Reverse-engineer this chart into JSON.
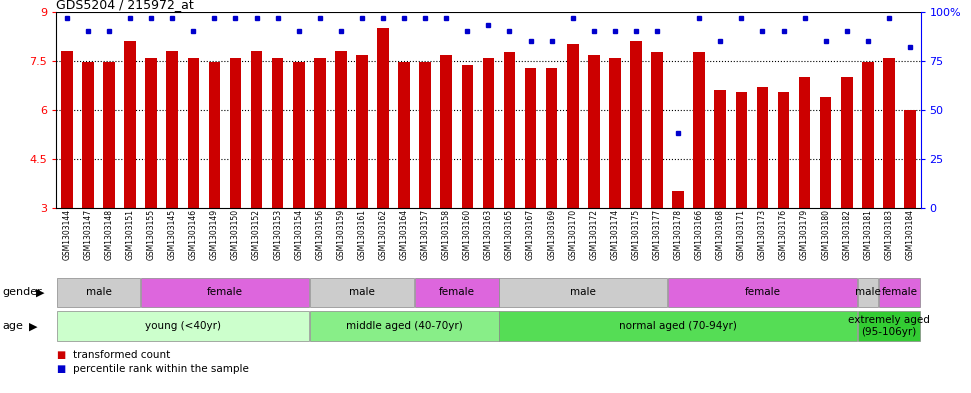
{
  "title": "GDS5204 / 215972_at",
  "samples": [
    "GSM1303144",
    "GSM1303147",
    "GSM1303148",
    "GSM1303151",
    "GSM1303155",
    "GSM1303145",
    "GSM1303146",
    "GSM1303149",
    "GSM1303150",
    "GSM1303152",
    "GSM1303153",
    "GSM1303154",
    "GSM1303156",
    "GSM1303159",
    "GSM1303161",
    "GSM1303162",
    "GSM1303164",
    "GSM1303157",
    "GSM1303158",
    "GSM1303160",
    "GSM1303163",
    "GSM1303165",
    "GSM1303167",
    "GSM1303169",
    "GSM1303170",
    "GSM1303172",
    "GSM1303174",
    "GSM1303175",
    "GSM1303177",
    "GSM1303178",
    "GSM1303166",
    "GSM1303168",
    "GSM1303171",
    "GSM1303173",
    "GSM1303176",
    "GSM1303179",
    "GSM1303180",
    "GSM1303182",
    "GSM1303181",
    "GSM1303183",
    "GSM1303184"
  ],
  "bar_values": [
    7.8,
    7.47,
    7.47,
    8.1,
    7.57,
    7.8,
    7.57,
    7.47,
    7.57,
    7.8,
    7.57,
    7.47,
    7.57,
    7.8,
    7.67,
    8.5,
    7.47,
    7.47,
    7.67,
    7.37,
    7.57,
    7.77,
    7.27,
    7.27,
    8.0,
    7.67,
    7.57,
    8.1,
    7.77,
    3.5,
    7.77,
    6.6,
    6.55,
    6.7,
    6.55,
    7.0,
    6.4,
    7.0,
    7.47,
    7.57,
    6.0
  ],
  "percentile_values": [
    97,
    90,
    90,
    97,
    97,
    97,
    90,
    97,
    97,
    97,
    97,
    90,
    97,
    90,
    97,
    97,
    97,
    97,
    97,
    90,
    93,
    90,
    85,
    85,
    97,
    90,
    90,
    90,
    90,
    38,
    97,
    85,
    97,
    90,
    90,
    97,
    85,
    90,
    85,
    97,
    82
  ],
  "ylim": [
    3,
    9
  ],
  "yticks": [
    3,
    4.5,
    6,
    7.5,
    9
  ],
  "ytick_labels": [
    "3",
    "4.5",
    "6",
    "7.5",
    "9"
  ],
  "y2lim": [
    0,
    100
  ],
  "y2ticks": [
    0,
    25,
    50,
    75,
    100
  ],
  "y2tick_labels": [
    "0",
    "25",
    "50",
    "75",
    "100%"
  ],
  "bar_color": "#CC0000",
  "dot_color": "#0000CC",
  "age_groups": [
    {
      "label": "young (<40yr)",
      "start": 0,
      "end": 12,
      "color": "#ccffcc"
    },
    {
      "label": "middle aged (40-70yr)",
      "start": 12,
      "end": 21,
      "color": "#88ee88"
    },
    {
      "label": "normal aged (70-94yr)",
      "start": 21,
      "end": 38,
      "color": "#55dd55"
    },
    {
      "label": "extremely aged\n(95-106yr)",
      "start": 38,
      "end": 41,
      "color": "#33cc33"
    }
  ],
  "gender_groups": [
    {
      "label": "male",
      "start": 0,
      "end": 4,
      "color": "#cccccc"
    },
    {
      "label": "female",
      "start": 4,
      "end": 12,
      "color": "#dd66dd"
    },
    {
      "label": "male",
      "start": 12,
      "end": 17,
      "color": "#cccccc"
    },
    {
      "label": "female",
      "start": 17,
      "end": 21,
      "color": "#dd66dd"
    },
    {
      "label": "male",
      "start": 21,
      "end": 29,
      "color": "#cccccc"
    },
    {
      "label": "female",
      "start": 29,
      "end": 38,
      "color": "#dd66dd"
    },
    {
      "label": "male",
      "start": 38,
      "end": 39,
      "color": "#cccccc"
    },
    {
      "label": "female",
      "start": 39,
      "end": 41,
      "color": "#dd66dd"
    }
  ],
  "legend_items": [
    {
      "label": "transformed count",
      "color": "#CC0000"
    },
    {
      "label": "percentile rank within the sample",
      "color": "#0000CC"
    }
  ],
  "fig_width": 9.71,
  "fig_height": 3.93,
  "dpi": 100
}
